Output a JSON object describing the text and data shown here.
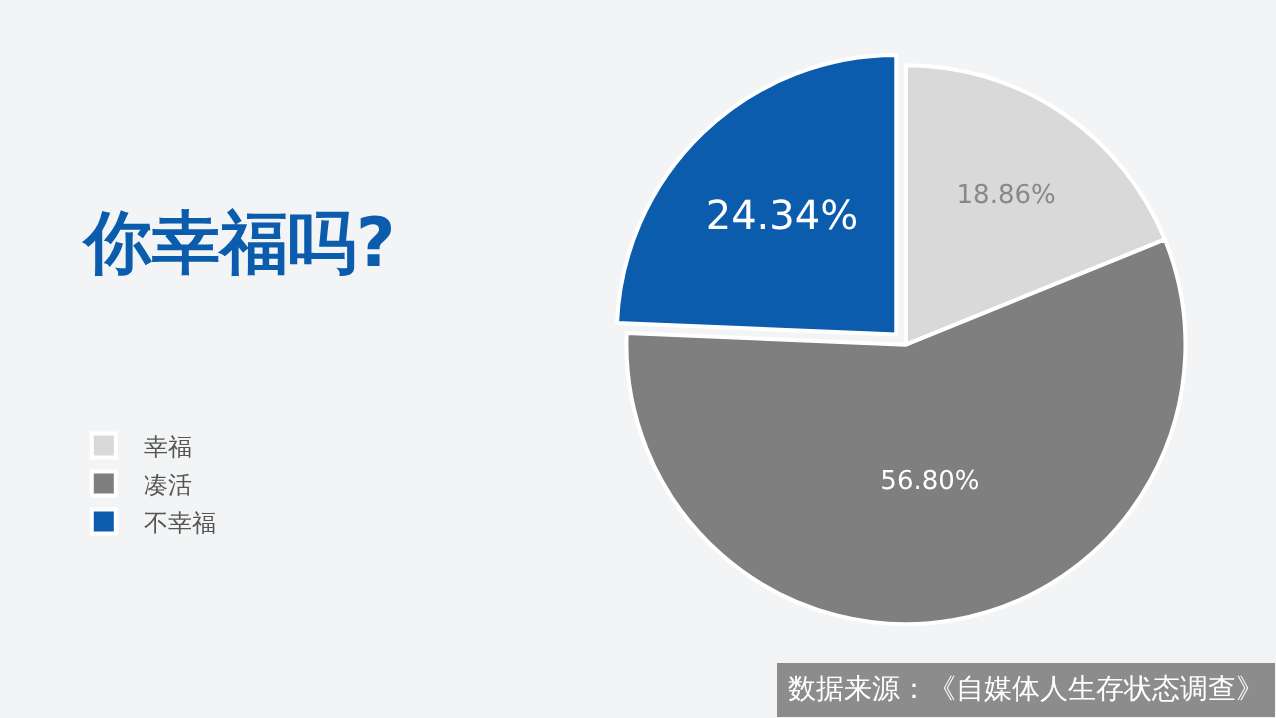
{
  "chart_data": {
    "type": "pie",
    "title": "你幸福吗?",
    "categories": [
      "幸福",
      "凑活",
      "不幸福"
    ],
    "values": [
      18.86,
      56.8,
      24.34
    ],
    "colors": [
      "#d9d9d9",
      "#7f7f7f",
      "#0b5cad"
    ],
    "data_labels": true,
    "value_labels": [
      "18.86%",
      "56.80%",
      "24.34%"
    ],
    "legend": "bottom left",
    "annotations": [
      "数据来源：《自媒体人生存状态调查》"
    ]
  }
}
